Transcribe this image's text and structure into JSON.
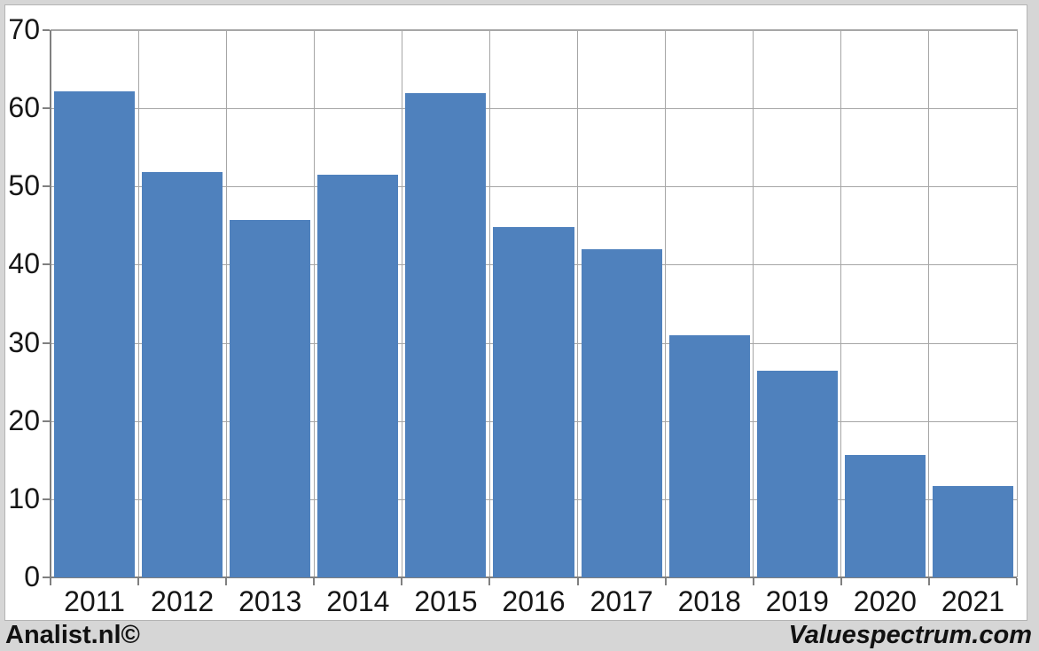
{
  "footer": {
    "left_text": "Analist.nl©",
    "right_text": "Valuespectrum.com",
    "background": "#d6d6d6"
  },
  "chart_data": {
    "type": "bar",
    "title": "",
    "xlabel": "",
    "ylabel": "",
    "categories": [
      "2011",
      "2012",
      "2013",
      "2014",
      "2015",
      "2016",
      "2017",
      "2018",
      "2019",
      "2020",
      "2021"
    ],
    "values": [
      62.2,
      51.8,
      45.7,
      51.5,
      62.0,
      44.8,
      42.0,
      31.0,
      26.4,
      15.7,
      11.7
    ],
    "ylim": [
      0,
      70
    ],
    "ytick_step": 10,
    "yticks": [
      0,
      10,
      20,
      30,
      40,
      50,
      60,
      70
    ],
    "grid": true,
    "legend": false,
    "bar_color": "#4f81bd",
    "gridline_color": "#a6a6a6",
    "axis_color": "#808080",
    "label_color": "#161616",
    "plot_background": "#ffffff"
  }
}
